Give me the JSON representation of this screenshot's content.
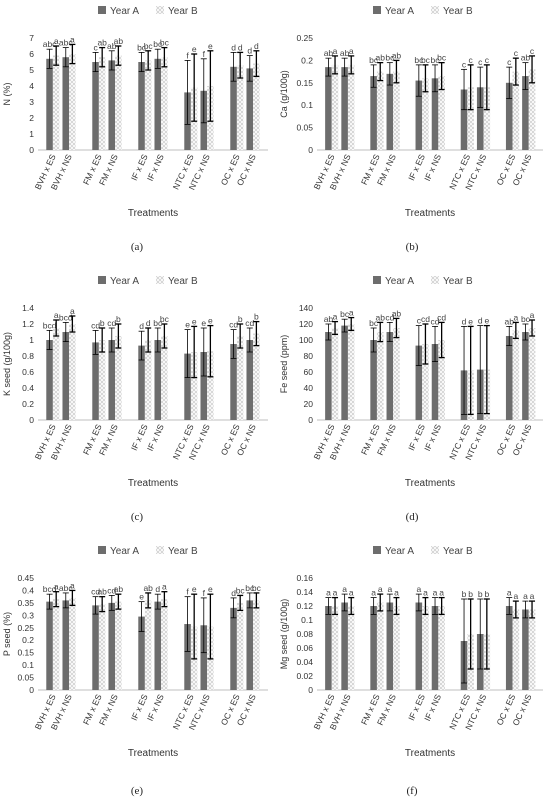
{
  "colors": {
    "year_a": "#6d6d6d",
    "year_b": "#c4c4c4",
    "axis": "#bfbfbf",
    "text": "#333333",
    "error_bar": "#000000"
  },
  "chart_data": [
    {
      "type": "bar",
      "panel_label": "(a)",
      "ylabel": "N (%)",
      "xlabel": "Treatments",
      "legend_position": "top",
      "grid": false,
      "ylim": [
        0,
        7
      ],
      "yticks": [
        0,
        1,
        2,
        3,
        4,
        5,
        6,
        7
      ],
      "categories": [
        "BVH x ES",
        "BVH x NS",
        "FM x ES",
        "FM x NS",
        "IF x ES",
        "IF x NS",
        "NTC x ES",
        "NTC x NS",
        "OC x ES",
        "OC x NS"
      ],
      "series": [
        {
          "name": "Year A",
          "values": [
            5.7,
            5.8,
            5.5,
            5.6,
            5.5,
            5.7,
            3.6,
            3.7,
            5.2,
            5.1
          ],
          "errors": [
            0.6,
            0.6,
            0.6,
            0.6,
            0.6,
            0.6,
            2.0,
            2.0,
            0.9,
            0.8
          ],
          "letters": [
            "abc",
            "abc",
            "c",
            "ab",
            "bc",
            "bc",
            "f",
            "f",
            "d",
            "d"
          ]
        },
        {
          "name": "Year B",
          "values": [
            5.9,
            6.0,
            5.8,
            5.9,
            5.6,
            5.8,
            3.9,
            4.0,
            5.3,
            5.4
          ],
          "errors": [
            0.6,
            0.6,
            0.6,
            0.6,
            0.6,
            0.6,
            2.1,
            2.2,
            0.8,
            0.8
          ],
          "letters": [
            "a",
            "a",
            "ab",
            "ab",
            "bc",
            "bc",
            "e",
            "e",
            "d",
            "d"
          ]
        }
      ]
    },
    {
      "type": "bar",
      "panel_label": "(b)",
      "ylabel": "Ca (g/100g)",
      "xlabel": "Treatments",
      "legend_position": "top",
      "grid": false,
      "ylim": [
        0,
        0.25
      ],
      "yticks": [
        0,
        0.05,
        0.1,
        0.15,
        0.2,
        0.25
      ],
      "categories": [
        "BVH x ES",
        "BVH x NS",
        "FM x ES",
        "FM x NS",
        "IF x ES",
        "IF x NS",
        "NTC x ES",
        "NTC x NS",
        "OC x ES",
        "OC x NS"
      ],
      "series": [
        {
          "name": "Year A",
          "values": [
            0.185,
            0.185,
            0.165,
            0.17,
            0.155,
            0.16,
            0.135,
            0.14,
            0.15,
            0.165
          ],
          "errors": [
            0.02,
            0.02,
            0.025,
            0.025,
            0.035,
            0.03,
            0.045,
            0.045,
            0.035,
            0.03
          ],
          "letters": [
            "ab",
            "ab",
            "bc",
            "bc",
            "bc",
            "bc",
            "c",
            "c",
            "c",
            "ab"
          ]
        },
        {
          "name": "Year B",
          "values": [
            0.19,
            0.19,
            0.175,
            0.175,
            0.16,
            0.165,
            0.14,
            0.14,
            0.175,
            0.18
          ],
          "errors": [
            0.02,
            0.02,
            0.02,
            0.025,
            0.03,
            0.03,
            0.05,
            0.05,
            0.03,
            0.03
          ],
          "letters": [
            "a",
            "a",
            "ab",
            "ab",
            "bc",
            "bc",
            "c",
            "c",
            "c",
            "c"
          ]
        }
      ]
    },
    {
      "type": "bar",
      "panel_label": "(c)",
      "ylabel": "K seed (g/100g)",
      "xlabel": "Treatments",
      "legend_position": "top",
      "grid": false,
      "ylim": [
        0,
        1.4
      ],
      "yticks": [
        0,
        0.2,
        0.4,
        0.6,
        0.8,
        1,
        1.2,
        1.4
      ],
      "categories": [
        "BVH x ES",
        "BVH x NS",
        "FM x ES",
        "FM x NS",
        "IF x ES",
        "IF x NS",
        "NTC x ES",
        "NTC x NS",
        "OC x ES",
        "OC x NS"
      ],
      "series": [
        {
          "name": "Year A",
          "values": [
            1.0,
            1.1,
            0.97,
            1.0,
            0.93,
            1.0,
            0.83,
            0.85,
            0.95,
            1.0
          ],
          "errors": [
            0.12,
            0.12,
            0.15,
            0.15,
            0.18,
            0.15,
            0.3,
            0.3,
            0.18,
            0.15
          ],
          "letters": [
            "bcd",
            "bcd",
            "cd",
            "cd",
            "d",
            "bc",
            "e",
            "e",
            "cd",
            "cd"
          ]
        },
        {
          "name": "Year B",
          "values": [
            1.15,
            1.2,
            1.0,
            1.05,
            1.0,
            1.05,
            0.85,
            0.86,
            1.05,
            1.08
          ],
          "errors": [
            0.1,
            0.1,
            0.15,
            0.15,
            0.15,
            0.15,
            0.32,
            0.32,
            0.15,
            0.15
          ],
          "letters": [
            "a",
            "a",
            "b",
            "b",
            "d",
            "bc",
            "e",
            "e",
            "b",
            "b"
          ]
        }
      ]
    },
    {
      "type": "bar",
      "panel_label": "(d)",
      "ylabel": "Fe seed (ppm)",
      "xlabel": "Treatments",
      "legend_position": "top",
      "grid": false,
      "ylim": [
        0,
        140
      ],
      "yticks": [
        0,
        20,
        40,
        60,
        80,
        100,
        120,
        140
      ],
      "categories": [
        "BVH x ES",
        "BVH x NS",
        "FM x ES",
        "FM x NS",
        "IF x ES",
        "IF x NS",
        "NTC x ES",
        "NTC x NS",
        "OC x ES",
        "OC x NS"
      ],
      "series": [
        {
          "name": "Year A",
          "values": [
            110,
            118,
            100,
            110,
            93,
            95,
            62,
            63,
            105,
            110
          ],
          "errors": [
            10,
            8,
            15,
            12,
            25,
            22,
            55,
            55,
            12,
            10
          ],
          "letters": [
            "ab",
            "bc",
            "bc",
            "cd",
            "c",
            "cd",
            "d",
            "d",
            "ab",
            "bc"
          ]
        },
        {
          "name": "Year B",
          "values": [
            115,
            120,
            110,
            115,
            95,
            100,
            62,
            63,
            112,
            115
          ],
          "errors": [
            8,
            8,
            12,
            12,
            25,
            22,
            55,
            55,
            10,
            10
          ],
          "letters": [
            "a",
            "a",
            "ab",
            "ab",
            "cd",
            "cd",
            "e",
            "e",
            "a",
            "a"
          ]
        }
      ]
    },
    {
      "type": "bar",
      "panel_label": "(e)",
      "ylabel": "P seed (%)",
      "xlabel": "Treatments",
      "legend_position": "top",
      "grid": false,
      "ylim": [
        0,
        0.45
      ],
      "yticks": [
        0,
        0.05,
        0.1,
        0.15,
        0.2,
        0.25,
        0.3,
        0.35,
        0.4,
        0.45
      ],
      "categories": [
        "BVH x ES",
        "BVH x NS",
        "FM x ES",
        "FM x NS",
        "IF x ES",
        "IF x NS",
        "NTC x ES",
        "NTC x NS",
        "OC x ES",
        "OC x NS"
      ],
      "series": [
        {
          "name": "Year A",
          "values": [
            0.355,
            0.36,
            0.34,
            0.35,
            0.295,
            0.355,
            0.265,
            0.26,
            0.33,
            0.36
          ],
          "errors": [
            0.03,
            0.03,
            0.035,
            0.03,
            0.06,
            0.03,
            0.11,
            0.11,
            0.04,
            0.03
          ],
          "letters": [
            "bcd",
            "abc",
            "cd",
            "cd",
            "e",
            "d",
            "f",
            "f",
            "d",
            "bc"
          ]
        },
        {
          "name": "Year B",
          "values": [
            0.365,
            0.37,
            0.345,
            0.355,
            0.36,
            0.365,
            0.255,
            0.255,
            0.35,
            0.36
          ],
          "errors": [
            0.03,
            0.03,
            0.03,
            0.03,
            0.03,
            0.03,
            0.13,
            0.13,
            0.03,
            0.03
          ],
          "letters": [
            "a",
            "a",
            "ab",
            "ab",
            "ab",
            "a",
            "e",
            "e",
            "bc",
            "bc"
          ]
        }
      ]
    },
    {
      "type": "bar",
      "panel_label": "(f)",
      "ylabel": "Mg seed (g/100g)",
      "xlabel": "Treatments",
      "legend_position": "top",
      "grid": false,
      "ylim": [
        0,
        0.16
      ],
      "yticks": [
        0,
        0.02,
        0.04,
        0.06,
        0.08,
        0.1,
        0.12,
        0.14,
        0.16
      ],
      "categories": [
        "BVH x ES",
        "BVH x NS",
        "FM x ES",
        "FM x NS",
        "IF x ES",
        "IF x NS",
        "NTC x ES",
        "NTC x NS",
        "OC x ES",
        "OC x NS"
      ],
      "series": [
        {
          "name": "Year A",
          "values": [
            0.12,
            0.125,
            0.12,
            0.125,
            0.125,
            0.12,
            0.07,
            0.08,
            0.12,
            0.115
          ],
          "errors": [
            0.012,
            0.012,
            0.012,
            0.012,
            0.012,
            0.012,
            0.06,
            0.05,
            0.012,
            0.012
          ],
          "letters": [
            "a",
            "a",
            "a",
            "a",
            "a",
            "a",
            "b",
            "b",
            "a",
            "a"
          ]
        },
        {
          "name": "Year B",
          "values": [
            0.12,
            0.12,
            0.125,
            0.12,
            0.12,
            0.12,
            0.08,
            0.08,
            0.115,
            0.115
          ],
          "errors": [
            0.012,
            0.012,
            0.012,
            0.012,
            0.012,
            0.012,
            0.05,
            0.05,
            0.012,
            0.012
          ],
          "letters": [
            "a",
            "a",
            "a",
            "a",
            "a",
            "a",
            "b",
            "b",
            "a",
            "a"
          ]
        }
      ]
    }
  ]
}
